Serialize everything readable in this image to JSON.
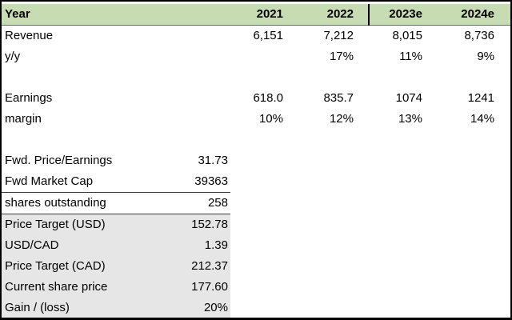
{
  "sheet": {
    "title": "financial-model-table",
    "colors": {
      "header_fill_green": "#c8dcb4",
      "valuation_block_gray": "#e7e6e6",
      "border_black": "#000000",
      "text_black": "#000000"
    },
    "header": {
      "label": "Year",
      "columns": [
        "2021",
        "2022",
        "2023e",
        "2024e"
      ]
    },
    "year_rows": [
      {
        "label": "Revenue",
        "values": [
          "6,151",
          "7,212",
          "8,015",
          "8,736"
        ]
      },
      {
        "label": "y/y",
        "values": [
          "",
          "17%",
          "11%",
          "9%"
        ]
      },
      {
        "label": "Earnings",
        "values": [
          "618.0",
          "835.7",
          "1074",
          "1241"
        ]
      },
      {
        "label": "margin",
        "values": [
          "10%",
          "12%",
          "13%",
          "14%"
        ]
      }
    ],
    "metric_rows": [
      {
        "label": "Fwd. Price/Earnings",
        "value": "31.73"
      },
      {
        "label": "Fwd Market Cap",
        "value": "39363"
      },
      {
        "label": "shares outstanding",
        "value": "258"
      }
    ],
    "target_rows": [
      {
        "label": "Price Target (USD)",
        "value": "152.78"
      },
      {
        "label": "USD/CAD",
        "value": "1.39"
      },
      {
        "label": "Price Target (CAD)",
        "value": "212.37"
      },
      {
        "label": "Current share price",
        "value": "177.60"
      },
      {
        "label": "Gain / (loss)",
        "value": "20%"
      }
    ]
  }
}
